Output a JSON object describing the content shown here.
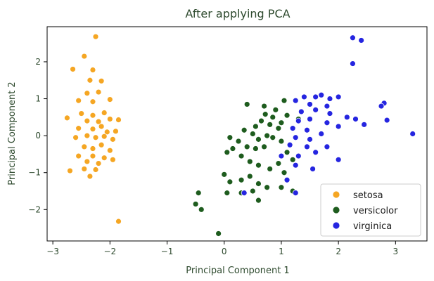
{
  "chart_data": {
    "type": "scatter",
    "title": "After applying PCA",
    "xlabel": "Principal Component 1",
    "ylabel": "Principal Component 2",
    "xlim": [
      -3.1,
      3.55
    ],
    "ylim": [
      -2.85,
      2.95
    ],
    "xticks": [
      -3,
      -2,
      -1,
      0,
      1,
      2,
      3
    ],
    "yticks": [
      -2,
      -1,
      0,
      1,
      2
    ],
    "xtick_labels": [
      "−3",
      "−2",
      "−1",
      "0",
      "1",
      "2",
      "3"
    ],
    "ytick_labels": [
      "−2",
      "−1",
      "0",
      "1",
      "2"
    ],
    "grid": false,
    "legend_position": "lower-right",
    "series": [
      {
        "name": "setosa",
        "color": "#f5a623",
        "points": [
          [
            -2.25,
            2.68
          ],
          [
            -2.45,
            2.15
          ],
          [
            -2.65,
            1.8
          ],
          [
            -2.3,
            1.78
          ],
          [
            -2.35,
            1.5
          ],
          [
            -2.15,
            1.48
          ],
          [
            -2.4,
            1.15
          ],
          [
            -2.2,
            1.18
          ],
          [
            -2.55,
            0.95
          ],
          [
            -2.3,
            0.92
          ],
          [
            -2.0,
            0.98
          ],
          [
            -2.5,
            0.6
          ],
          [
            -2.3,
            0.55
          ],
          [
            -2.1,
            0.62
          ],
          [
            -2.75,
            0.48
          ],
          [
            -2.4,
            0.4
          ],
          [
            -2.2,
            0.38
          ],
          [
            -2.0,
            0.45
          ],
          [
            -1.85,
            0.43
          ],
          [
            -2.55,
            0.2
          ],
          [
            -2.3,
            0.18
          ],
          [
            -2.15,
            0.25
          ],
          [
            -2.05,
            0.1
          ],
          [
            -1.9,
            0.12
          ],
          [
            -2.6,
            -0.05
          ],
          [
            -2.4,
            0.0
          ],
          [
            -2.25,
            -0.05
          ],
          [
            -2.1,
            -0.02
          ],
          [
            -1.95,
            -0.1
          ],
          [
            -2.45,
            -0.3
          ],
          [
            -2.3,
            -0.35
          ],
          [
            -2.15,
            -0.25
          ],
          [
            -2.0,
            -0.4
          ],
          [
            -2.55,
            -0.55
          ],
          [
            -2.3,
            -0.55
          ],
          [
            -2.1,
            -0.6
          ],
          [
            -2.4,
            -0.7
          ],
          [
            -2.2,
            -0.75
          ],
          [
            -1.95,
            -0.65
          ],
          [
            -2.7,
            -0.95
          ],
          [
            -2.45,
            -0.9
          ],
          [
            -2.25,
            -0.92
          ],
          [
            -2.35,
            -1.1
          ],
          [
            -1.85,
            -2.32
          ]
        ]
      },
      {
        "name": "versicolor",
        "color": "#1e5c1e",
        "points": [
          [
            0.4,
            0.85
          ],
          [
            0.7,
            0.8
          ],
          [
            0.9,
            0.7
          ],
          [
            0.72,
            0.58
          ],
          [
            0.85,
            0.5
          ],
          [
            0.65,
            0.4
          ],
          [
            0.8,
            0.3
          ],
          [
            1.0,
            0.35
          ],
          [
            1.1,
            0.55
          ],
          [
            0.95,
            0.2
          ],
          [
            0.55,
            0.25
          ],
          [
            0.35,
            0.15
          ],
          [
            0.5,
            0.05
          ],
          [
            0.75,
            0.0
          ],
          [
            0.6,
            -0.1
          ],
          [
            0.85,
            -0.05
          ],
          [
            1.0,
            -0.15
          ],
          [
            0.1,
            -0.05
          ],
          [
            0.25,
            -0.15
          ],
          [
            0.4,
            -0.3
          ],
          [
            0.55,
            -0.35
          ],
          [
            0.7,
            -0.3
          ],
          [
            0.15,
            -0.35
          ],
          [
            0.3,
            -0.55
          ],
          [
            0.45,
            -0.7
          ],
          [
            0.6,
            -0.8
          ],
          [
            0.05,
            -0.45
          ],
          [
            0.8,
            -0.9
          ],
          [
            0.95,
            -0.75
          ],
          [
            1.1,
            -0.45
          ],
          [
            1.2,
            -0.65
          ],
          [
            1.05,
            -1.0
          ],
          [
            0.0,
            -1.05
          ],
          [
            0.1,
            -1.25
          ],
          [
            0.3,
            -1.2
          ],
          [
            0.45,
            -1.1
          ],
          [
            0.6,
            -1.3
          ],
          [
            0.75,
            -1.4
          ],
          [
            0.5,
            -1.5
          ],
          [
            0.3,
            -1.55
          ],
          [
            0.05,
            -1.55
          ],
          [
            1.0,
            -1.4
          ],
          [
            1.2,
            -1.5
          ],
          [
            -0.45,
            -1.55
          ],
          [
            -0.5,
            -1.85
          ],
          [
            -0.4,
            -2.0
          ],
          [
            0.6,
            -1.75
          ],
          [
            -0.1,
            -2.65
          ],
          [
            1.3,
            0.45
          ],
          [
            1.05,
            0.95
          ]
        ]
      },
      {
        "name": "virginica",
        "color": "#2525e0",
        "points": [
          [
            2.25,
            2.65
          ],
          [
            2.4,
            2.58
          ],
          [
            2.25,
            1.95
          ],
          [
            1.4,
            1.05
          ],
          [
            1.6,
            1.05
          ],
          [
            1.7,
            1.1
          ],
          [
            1.85,
            1.0
          ],
          [
            2.0,
            1.05
          ],
          [
            1.25,
            0.95
          ],
          [
            1.5,
            0.85
          ],
          [
            1.8,
            0.8
          ],
          [
            2.8,
            0.88
          ],
          [
            2.75,
            0.8
          ],
          [
            1.35,
            0.65
          ],
          [
            1.6,
            0.7
          ],
          [
            1.85,
            0.6
          ],
          [
            2.15,
            0.5
          ],
          [
            2.3,
            0.45
          ],
          [
            2.45,
            0.3
          ],
          [
            2.85,
            0.42
          ],
          [
            1.3,
            0.4
          ],
          [
            1.5,
            0.45
          ],
          [
            1.8,
            0.35
          ],
          [
            2.0,
            0.25
          ],
          [
            1.2,
            0.2
          ],
          [
            1.45,
            0.15
          ],
          [
            1.7,
            0.05
          ],
          [
            1.25,
            -0.05
          ],
          [
            1.5,
            -0.1
          ],
          [
            1.15,
            -0.25
          ],
          [
            1.45,
            -0.3
          ],
          [
            1.6,
            -0.45
          ],
          [
            1.8,
            -0.3
          ],
          [
            2.0,
            -0.65
          ],
          [
            1.3,
            -0.55
          ],
          [
            1.0,
            -0.55
          ],
          [
            1.25,
            -0.8
          ],
          [
            1.55,
            -0.9
          ],
          [
            1.1,
            -1.2
          ],
          [
            0.35,
            -1.55
          ],
          [
            1.25,
            -1.55
          ],
          [
            3.3,
            0.05
          ]
        ]
      }
    ]
  }
}
